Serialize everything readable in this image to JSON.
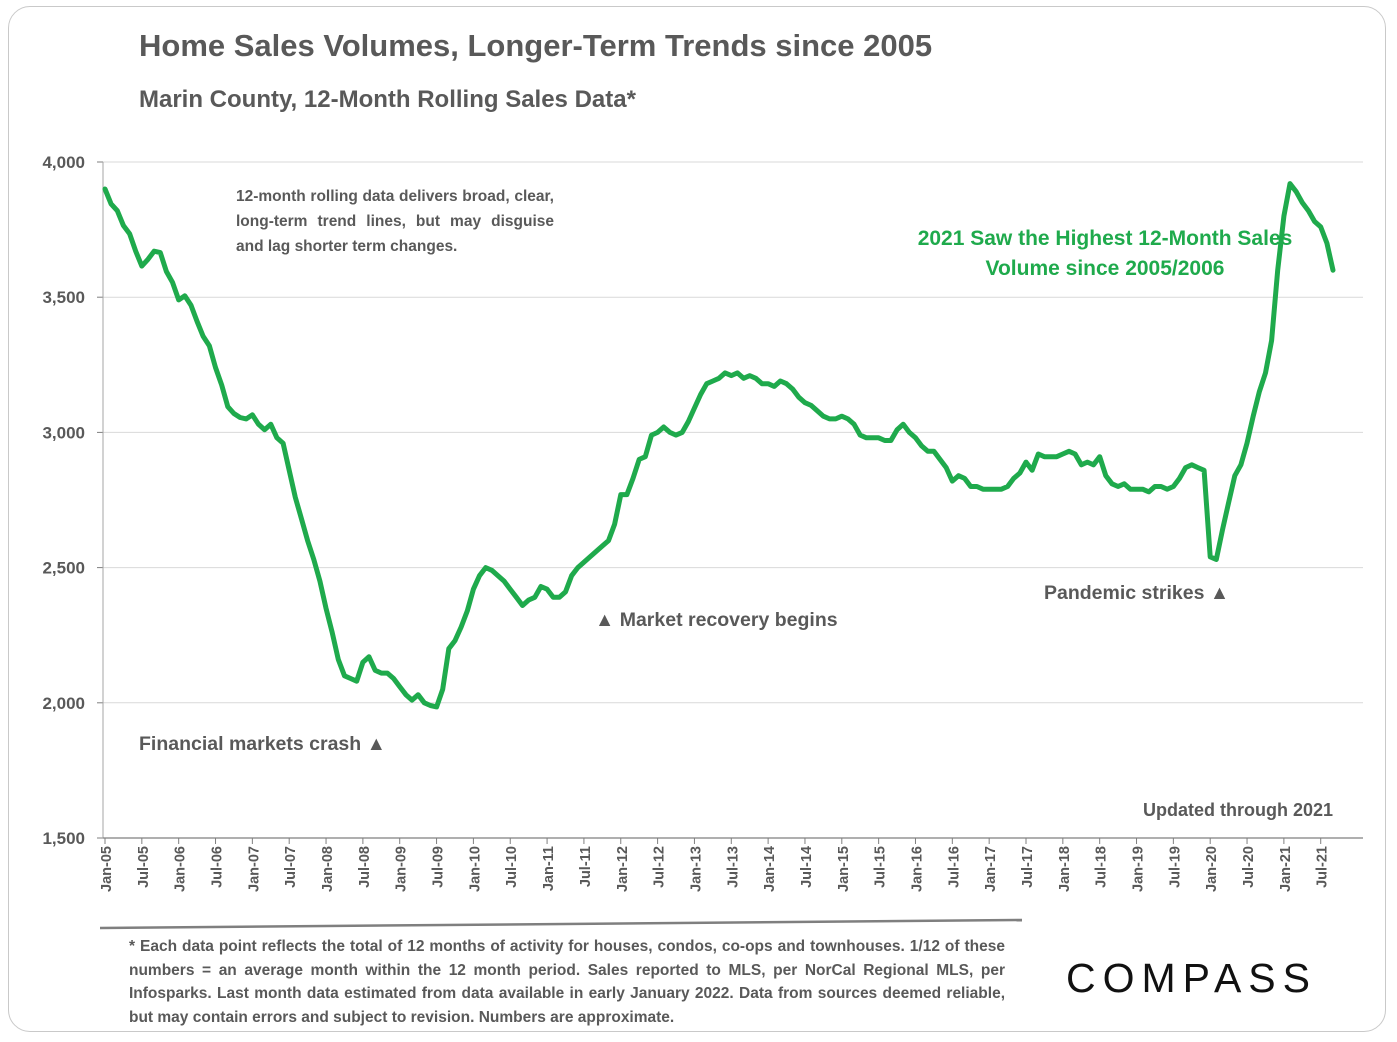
{
  "title": "Home Sales Volumes, Longer-Term Trends since 2005",
  "subtitle": "Marin County, 12-Month Rolling Sales Data*",
  "note": "12-month rolling data delivers broad, clear, long-term trend lines, but may disguise and lag shorter term changes.",
  "highlight": "2021 Saw the Highest 12-Month Sales Volume since 2005/2006",
  "annotations": {
    "crash": "Financial markets crash ▲",
    "recovery": "▲  Market recovery begins",
    "pandemic": "Pandemic strikes ▲"
  },
  "updated": "Updated through 2021",
  "footnote": "* Each data point reflects the total of 12 months of activity for houses, condos, co-ops and townhouses. 1/12 of these numbers = an average month within the 12 month period. Sales reported to MLS, per NorCal Regional MLS, per Infosparks. Last month data estimated from data available in early January 2022. Data from sources deemed reliable, but may contain errors and subject to revision. Numbers are approximate.",
  "logo": "COMPASS",
  "colors": {
    "line": "#1faa4c",
    "text": "#595959",
    "grid": "#d9d9d9"
  },
  "chart_data": {
    "type": "line",
    "title": "Home Sales Volumes, Longer-Term Trends since 2005",
    "subtitle": "Marin County, 12-Month Rolling Sales Data*",
    "xlabel": "",
    "ylabel": "",
    "ylim": [
      1500,
      4000
    ],
    "yticks": [
      1500,
      2000,
      2500,
      3000,
      3500,
      4000
    ],
    "ytick_labels": [
      "1,500",
      "2,000",
      "2,500",
      "3,000",
      "3,500",
      "4,000"
    ],
    "xtick_labels": [
      "Jan-05",
      "Jul-05",
      "Jan-06",
      "Jul-06",
      "Jan-07",
      "Jul-07",
      "Jan-08",
      "Jul-08",
      "Jan-09",
      "Jul-09",
      "Jan-10",
      "Jul-10",
      "Jan-11",
      "Jul-11",
      "Jan-12",
      "Jul-12",
      "Jan-13",
      "Jul-13",
      "Jan-14",
      "Jul-14",
      "Jan-15",
      "Jul-15",
      "Jan-16",
      "Jul-16",
      "Jan-17",
      "Jul-17",
      "Jan-18",
      "Jul-18",
      "Jan-19",
      "Jul-19",
      "Jan-20",
      "Jul-20",
      "Jan-21",
      "Jul-21"
    ],
    "grid": true,
    "legend": "none",
    "start_month": "Jan-05",
    "values": [
      3900,
      3845,
      3820,
      3765,
      3735,
      3670,
      3615,
      3640,
      3670,
      3665,
      3595,
      3555,
      3490,
      3505,
      3470,
      3410,
      3355,
      3320,
      3240,
      3175,
      3095,
      3070,
      3055,
      3050,
      3065,
      3030,
      3010,
      3030,
      2980,
      2960,
      2860,
      2760,
      2680,
      2600,
      2530,
      2450,
      2350,
      2260,
      2160,
      2100,
      2090,
      2080,
      2150,
      2170,
      2120,
      2110,
      2110,
      2090,
      2060,
      2030,
      2010,
      2030,
      2000,
      1990,
      1985,
      2050,
      2200,
      2230,
      2280,
      2340,
      2420,
      2470,
      2500,
      2490,
      2470,
      2450,
      2420,
      2390,
      2360,
      2380,
      2390,
      2430,
      2420,
      2390,
      2390,
      2410,
      2470,
      2500,
      2520,
      2540,
      2560,
      2580,
      2600,
      2660,
      2770,
      2770,
      2830,
      2900,
      2910,
      2990,
      3000,
      3020,
      3000,
      2990,
      3000,
      3040,
      3090,
      3140,
      3180,
      3190,
      3200,
      3220,
      3210,
      3220,
      3200,
      3210,
      3200,
      3180,
      3180,
      3170,
      3190,
      3180,
      3160,
      3130,
      3110,
      3100,
      3080,
      3060,
      3050,
      3050,
      3060,
      3050,
      3030,
      2990,
      2980,
      2980,
      2980,
      2970,
      2970,
      3010,
      3030,
      3000,
      2980,
      2950,
      2930,
      2930,
      2900,
      2870,
      2820,
      2840,
      2830,
      2800,
      2800,
      2790,
      2790,
      2790,
      2790,
      2800,
      2830,
      2850,
      2890,
      2860,
      2920,
      2910,
      2910,
      2910,
      2920,
      2930,
      2920,
      2880,
      2890,
      2880,
      2910,
      2840,
      2810,
      2800,
      2810,
      2790,
      2790,
      2790,
      2780,
      2800,
      2800,
      2790,
      2800,
      2830,
      2870,
      2880,
      2870,
      2860,
      2540,
      2530,
      2640,
      2740,
      2840,
      2880,
      2960,
      3060,
      3150,
      3220,
      3340,
      3600,
      3800,
      3920,
      3890,
      3850,
      3820,
      3780,
      3760,
      3700,
      3600
    ]
  }
}
